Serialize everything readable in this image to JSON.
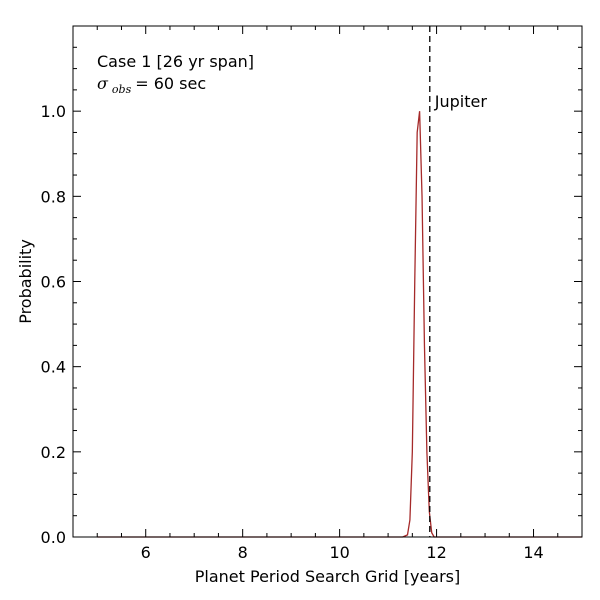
{
  "chart_data": {
    "type": "line",
    "title": "",
    "xlabel": "Planet Period Search Grid [years]",
    "ylabel": "Probability",
    "xlim": [
      4.5,
      15
    ],
    "ylim": [
      0,
      1.2
    ],
    "x_ticks": [
      6,
      8,
      10,
      12,
      14
    ],
    "x_tick_labels": [
      "6",
      "8",
      "10",
      "12",
      "14"
    ],
    "y_ticks": [
      0.0,
      0.2,
      0.4,
      0.6,
      0.8,
      1.0
    ],
    "y_tick_labels": [
      "0.0",
      "0.2",
      "0.4",
      "0.6",
      "0.8",
      "1.0"
    ],
    "grid": false,
    "series": [
      {
        "color": "#a52a2a",
        "x": [
          5.0,
          11.3,
          11.4,
          11.45,
          11.5,
          11.55,
          11.6,
          11.65,
          11.7,
          11.75,
          11.8,
          11.85,
          11.9,
          11.95,
          12.0,
          15.0
        ],
        "y": [
          0.0,
          0.0,
          0.005,
          0.04,
          0.2,
          0.6,
          0.95,
          1.0,
          0.8,
          0.45,
          0.2,
          0.06,
          0.01,
          0.0,
          0.0,
          0.0
        ]
      }
    ],
    "reference_line": {
      "x": 11.86,
      "label": "Jupiter",
      "style": "dashed",
      "color": "#000000"
    },
    "annotations": {
      "case_text": "Case 1 [26 yr span]",
      "sigma_symbol": "σ",
      "sigma_subscript": "obs",
      "sigma_equals": " = ",
      "sigma_value_text": "60 sec"
    }
  }
}
